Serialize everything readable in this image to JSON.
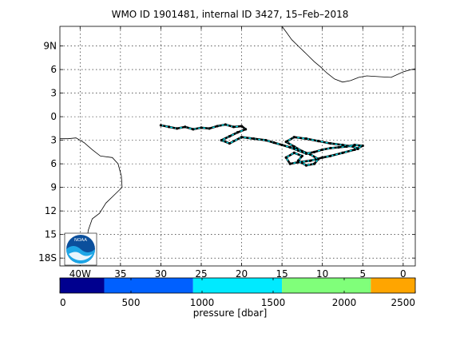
{
  "figure": {
    "title": "WMO ID 1901481, internal ID 3427, 15–Feb–2018",
    "colorbar_label": "pressure [dbar]",
    "logo_text": "NOAA"
  },
  "chart_data": {
    "type": "map-trajectory",
    "x_range_lon": [
      -42.5,
      1.5
    ],
    "y_range_lat": [
      -19,
      11.5
    ],
    "lon_ticks": [
      {
        "value": -40,
        "label": "40W"
      },
      {
        "value": -35,
        "label": "35"
      },
      {
        "value": -30,
        "label": "30"
      },
      {
        "value": -25,
        "label": "25"
      },
      {
        "value": -20,
        "label": "20"
      },
      {
        "value": -15,
        "label": "15"
      },
      {
        "value": -10,
        "label": "10"
      },
      {
        "value": -5,
        "label": "5"
      },
      {
        "value": 0,
        "label": "0"
      }
    ],
    "lat_ticks": [
      {
        "value": 9,
        "label": "9N"
      },
      {
        "value": 6,
        "label": "6"
      },
      {
        "value": 3,
        "label": "3"
      },
      {
        "value": 0,
        "label": "0"
      },
      {
        "value": -3,
        "label": "3"
      },
      {
        "value": -6,
        "label": "6"
      },
      {
        "value": -9,
        "label": "9"
      },
      {
        "value": -12,
        "label": "12"
      },
      {
        "value": -15,
        "label": "15"
      },
      {
        "value": -18,
        "label": "18S"
      }
    ],
    "grid": true,
    "coastline_africa": [
      [
        -15.0,
        11.5
      ],
      [
        -14.5,
        10.8
      ],
      [
        -13.8,
        9.8
      ],
      [
        -13.0,
        9.0
      ],
      [
        -12.0,
        8.0
      ],
      [
        -11.0,
        7.0
      ],
      [
        -10.2,
        6.3
      ],
      [
        -9.5,
        5.6
      ],
      [
        -8.5,
        4.8
      ],
      [
        -7.5,
        4.4
      ],
      [
        -6.5,
        4.6
      ],
      [
        -5.5,
        5.0
      ],
      [
        -4.5,
        5.2
      ],
      [
        -3.0,
        5.1
      ],
      [
        -1.5,
        5.0
      ],
      [
        0.0,
        5.7
      ],
      [
        1.0,
        6.0
      ],
      [
        1.5,
        6.1
      ]
    ],
    "coastline_southamerica": [
      [
        -42.5,
        -2.8
      ],
      [
        -41.5,
        -2.8
      ],
      [
        -40.5,
        -2.7
      ],
      [
        -39.5,
        -3.3
      ],
      [
        -38.5,
        -4.2
      ],
      [
        -37.5,
        -5.0
      ],
      [
        -36.0,
        -5.2
      ],
      [
        -35.3,
        -6.0
      ],
      [
        -34.9,
        -7.5
      ],
      [
        -34.8,
        -9.0
      ],
      [
        -35.6,
        -9.8
      ],
      [
        -36.8,
        -11.0
      ],
      [
        -37.6,
        -12.3
      ],
      [
        -38.5,
        -13.0
      ],
      [
        -39.0,
        -14.5
      ],
      [
        -39.2,
        -16.5
      ],
      [
        -39.6,
        -18.0
      ],
      [
        -40.0,
        -19.0
      ]
    ],
    "trajectory": [
      [
        -30.0,
        -1.1
      ],
      [
        -29.0,
        -1.3
      ],
      [
        -28.0,
        -1.5
      ],
      [
        -27.0,
        -1.3
      ],
      [
        -26.0,
        -1.6
      ],
      [
        -25.0,
        -1.4
      ],
      [
        -24.0,
        -1.5
      ],
      [
        -23.0,
        -1.2
      ],
      [
        -22.0,
        -1.0
      ],
      [
        -21.0,
        -1.3
      ],
      [
        -20.0,
        -1.2
      ],
      [
        -19.5,
        -1.6
      ],
      [
        -20.5,
        -2.0
      ],
      [
        -21.5,
        -2.5
      ],
      [
        -22.5,
        -3.0
      ],
      [
        -21.5,
        -3.4
      ],
      [
        -20.0,
        -2.6
      ],
      [
        -18.5,
        -2.8
      ],
      [
        -17.0,
        -3.0
      ],
      [
        -16.0,
        -3.3
      ],
      [
        -15.0,
        -3.6
      ],
      [
        -14.0,
        -3.9
      ],
      [
        -13.0,
        -4.3
      ],
      [
        -12.0,
        -4.7
      ],
      [
        -11.0,
        -4.5
      ],
      [
        -10.0,
        -4.2
      ],
      [
        -9.0,
        -4.0
      ],
      [
        -8.0,
        -3.9
      ],
      [
        -7.0,
        -3.8
      ],
      [
        -6.0,
        -3.6
      ],
      [
        -5.0,
        -3.7
      ],
      [
        -6.0,
        -4.2
      ],
      [
        -7.5,
        -4.6
      ],
      [
        -9.0,
        -5.0
      ],
      [
        -10.0,
        -5.2
      ],
      [
        -11.5,
        -5.6
      ],
      [
        -13.0,
        -5.8
      ],
      [
        -14.0,
        -6.0
      ],
      [
        -14.5,
        -5.2
      ],
      [
        -13.5,
        -4.6
      ],
      [
        -12.5,
        -5.0
      ],
      [
        -13.0,
        -5.6
      ],
      [
        -12.0,
        -6.2
      ],
      [
        -11.0,
        -6.0
      ],
      [
        -10.5,
        -5.4
      ],
      [
        -11.5,
        -4.8
      ],
      [
        -12.5,
        -4.4
      ],
      [
        -13.5,
        -3.8
      ],
      [
        -14.5,
        -3.2
      ],
      [
        -13.5,
        -2.6
      ],
      [
        -12.0,
        -2.8
      ],
      [
        -10.5,
        -3.1
      ],
      [
        -9.0,
        -3.4
      ],
      [
        -7.5,
        -3.6
      ],
      [
        -6.2,
        -3.8
      ],
      [
        -5.6,
        -4.1
      ]
    ],
    "trajectory_colors": [
      "#00e5f0",
      "#000000"
    ],
    "colorbar": {
      "min": 0,
      "max": 2500,
      "ticks": [
        0,
        500,
        1000,
        1500,
        2000,
        2500
      ],
      "bins": [
        {
          "from": 0,
          "to": 312,
          "color": "#00008f"
        },
        {
          "from": 312,
          "to": 937,
          "color": "#0060ff"
        },
        {
          "from": 937,
          "to": 1562,
          "color": "#00eaff"
        },
        {
          "from": 1562,
          "to": 2187,
          "color": "#80ff7a"
        },
        {
          "from": 2187,
          "to": 2500,
          "color": "#ffa500"
        }
      ]
    }
  }
}
